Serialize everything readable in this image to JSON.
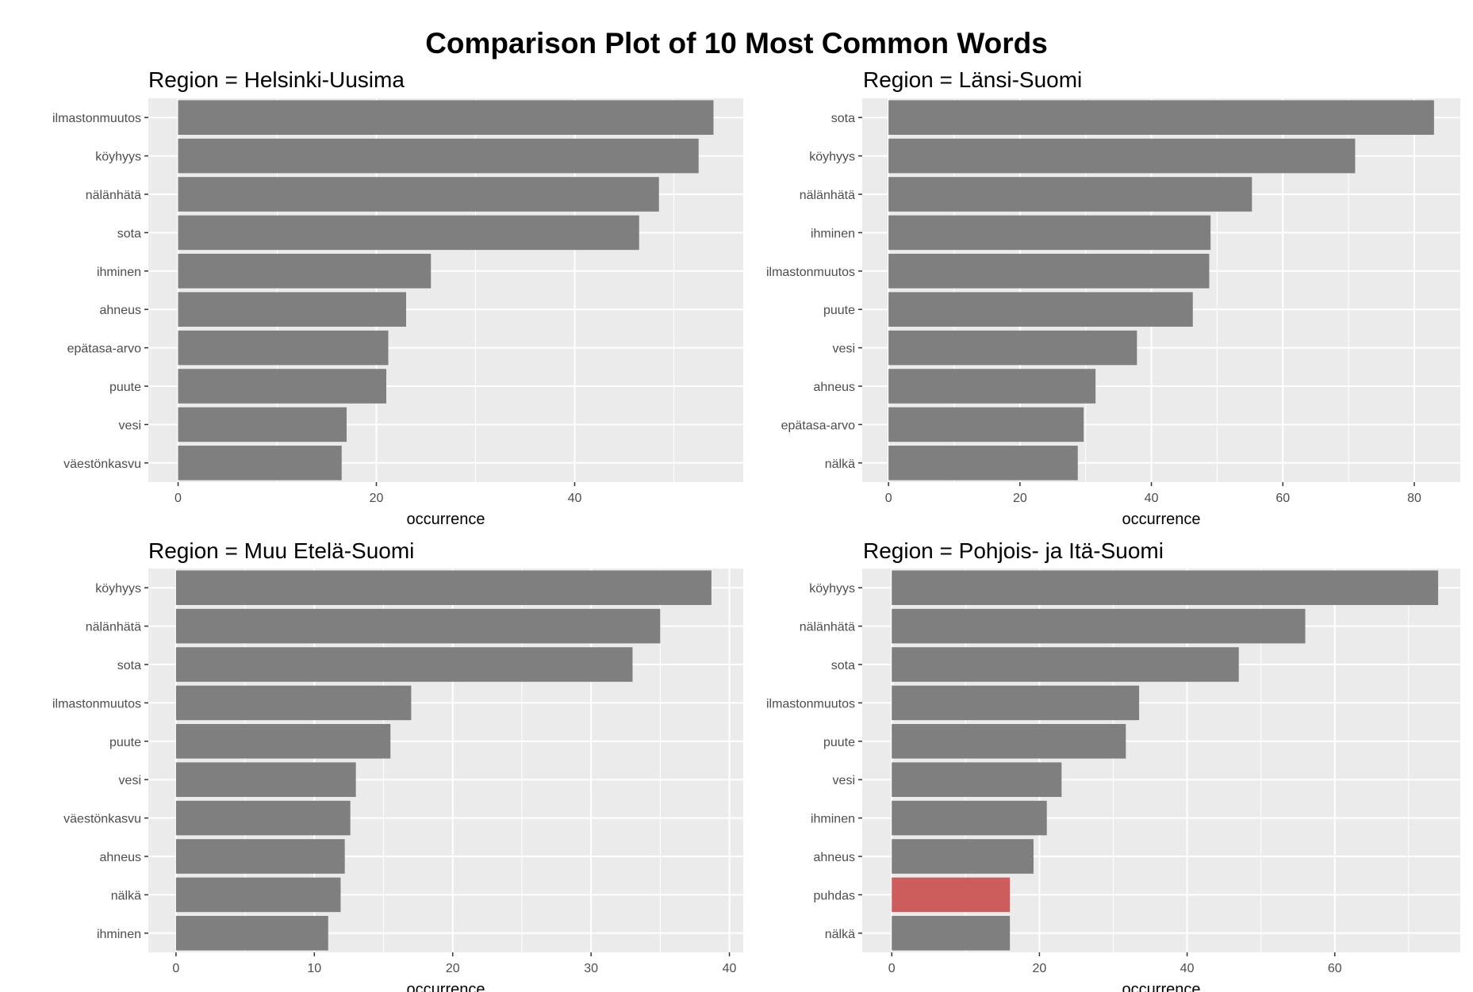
{
  "title": "Comparison Plot of 10 Most Common Words",
  "colors": {
    "bar": "#7f7f7f",
    "highlight": "#cd5c5c",
    "panel_bg": "#ebebeb",
    "grid": "#ffffff"
  },
  "chart_data": [
    {
      "type": "bar",
      "orientation": "horizontal",
      "title": "Region = Helsinki-Uusima",
      "xlabel": "occurrence",
      "xlim": [
        -3,
        57
      ],
      "xticks": [
        0,
        20,
        40
      ],
      "categories": [
        "ilmastonmuutos",
        "köyhyys",
        "nälänhätä",
        "sota",
        "ihminen",
        "ahneus",
        "epätasa-arvo",
        "puute",
        "vesi",
        "väestönkasvu"
      ],
      "values": [
        54,
        52.5,
        48.5,
        46.5,
        25.5,
        23,
        21.2,
        21,
        17,
        16.5
      ],
      "highlight": []
    },
    {
      "type": "bar",
      "orientation": "horizontal",
      "title": "Region = Länsi-Suomi",
      "xlabel": "occurrence",
      "xlim": [
        -4,
        87
      ],
      "xticks": [
        0,
        20,
        40,
        60,
        80
      ],
      "categories": [
        "sota",
        "köyhyys",
        "nälänhätä",
        "ihminen",
        "ilmastonmuutos",
        "puute",
        "vesi",
        "ahneus",
        "epätasa-arvo",
        "nälkä"
      ],
      "values": [
        83,
        71,
        55.3,
        49,
        48.8,
        46.3,
        37.8,
        31.5,
        29.7,
        28.8
      ],
      "highlight": []
    },
    {
      "type": "bar",
      "orientation": "horizontal",
      "title": "Region = Muu Etelä-Suomi",
      "xlabel": "occurrence",
      "xlim": [
        -2,
        41
      ],
      "xticks": [
        0,
        10,
        20,
        30,
        40
      ],
      "categories": [
        "köyhyys",
        "nälänhätä",
        "sota",
        "ilmastonmuutos",
        "puute",
        "vesi",
        "väestönkasvu",
        "ahneus",
        "nälkä",
        "ihminen"
      ],
      "values": [
        38.7,
        35,
        33,
        17,
        15.5,
        13,
        12.6,
        12.2,
        11.9,
        11
      ],
      "highlight": []
    },
    {
      "type": "bar",
      "orientation": "horizontal",
      "title": "Region = Pohjois- ja Itä-Suomi",
      "xlabel": "occurrence",
      "xlim": [
        -4,
        77
      ],
      "xticks": [
        0,
        20,
        40,
        60
      ],
      "categories": [
        "köyhyys",
        "nälänhätä",
        "sota",
        "ilmastonmuutos",
        "puute",
        "vesi",
        "ihminen",
        "ahneus",
        "puhdas",
        "nälkä"
      ],
      "values": [
        74,
        56,
        47,
        33.5,
        31.7,
        23,
        21,
        19.2,
        16,
        16
      ],
      "highlight": [
        "puhdas"
      ]
    }
  ]
}
